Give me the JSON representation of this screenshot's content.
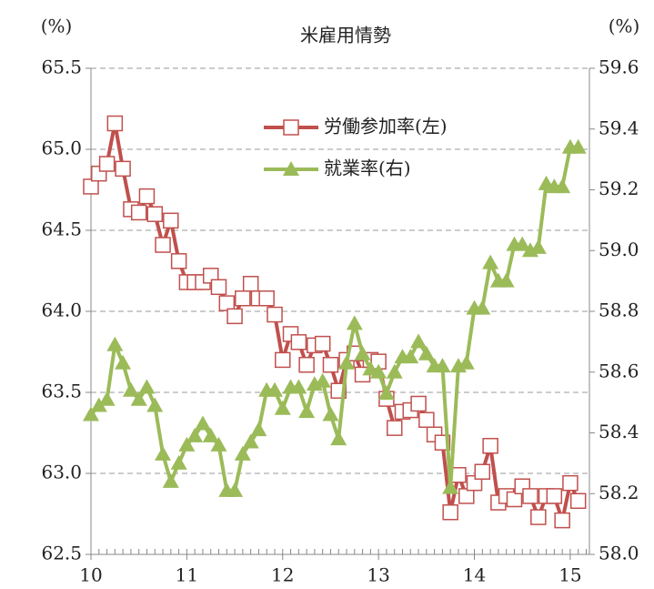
{
  "chart_data": {
    "type": "line",
    "title": "米雇用情勢",
    "y_unit": "(%)",
    "y2_unit": "(%)",
    "xlim": [
      10,
      15.2
    ],
    "xticks": [
      10,
      11,
      12,
      13,
      14,
      15
    ],
    "ylim": [
      62.5,
      65.5
    ],
    "yticks": [
      {
        "value": 62.5,
        "label": "62.5"
      },
      {
        "value": 63.0,
        "label": "63.0"
      },
      {
        "value": 63.5,
        "label": "63.5"
      },
      {
        "value": 64.0,
        "label": "64.0"
      },
      {
        "value": 64.5,
        "label": "64.5"
      },
      {
        "value": 65.0,
        "label": "65.0"
      },
      {
        "value": 65.5,
        "label": "65.5"
      }
    ],
    "y2lim": [
      58.0,
      59.6
    ],
    "y2ticks": [
      {
        "value": 58.0,
        "label": "58.0"
      },
      58.2,
      58.4,
      58.6,
      58.8,
      {
        "value": 59.0,
        "label": "59.0"
      },
      59.2,
      59.4,
      59.6
    ],
    "grid": true,
    "legend": "top",
    "x": [
      10,
      10.083,
      10.167,
      10.25,
      10.333,
      10.417,
      10.5,
      10.583,
      10.667,
      10.75,
      10.833,
      10.917,
      11,
      11.083,
      11.167,
      11.25,
      11.333,
      11.417,
      11.5,
      11.583,
      11.667,
      11.75,
      11.833,
      11.917,
      12,
      12.083,
      12.167,
      12.25,
      12.333,
      12.417,
      12.5,
      12.583,
      12.667,
      12.75,
      12.833,
      12.917,
      13,
      13.083,
      13.167,
      13.25,
      13.333,
      13.417,
      13.5,
      13.583,
      13.667,
      13.75,
      13.833,
      13.917,
      14,
      14.083,
      14.167,
      14.25,
      14.333,
      14.417,
      14.5,
      14.583,
      14.667,
      14.75,
      14.833,
      14.917,
      15,
      15.083
    ],
    "series": [
      {
        "name": "労働参加率(左)",
        "color": "#c0504d",
        "marker": "square",
        "values": [
          64.77,
          64.85,
          64.91,
          65.16,
          64.88,
          64.63,
          64.61,
          64.71,
          64.6,
          64.41,
          64.56,
          64.31,
          64.18,
          64.18,
          64.18,
          64.22,
          64.15,
          64.05,
          63.97,
          64.08,
          64.17,
          64.08,
          64.08,
          63.98,
          63.7,
          63.86,
          63.81,
          63.67,
          63.79,
          63.8,
          63.67,
          63.51,
          63.7,
          63.74,
          63.61,
          63.7,
          63.69,
          63.46,
          63.28,
          63.38,
          63.39,
          63.43,
          63.33,
          63.24,
          63.19,
          62.76,
          62.99,
          62.86,
          62.94,
          63.01,
          63.17,
          62.82,
          62.86,
          62.84,
          62.92,
          62.86,
          62.73,
          62.86,
          62.86,
          62.71,
          62.94,
          62.83
        ]
      },
      {
        "name": "就業率(右)",
        "color": "#9bbb59",
        "marker": "triangle",
        "axis": "y2",
        "values": [
          58.46,
          58.49,
          58.51,
          58.69,
          58.63,
          58.54,
          58.51,
          58.55,
          58.49,
          58.33,
          58.24,
          58.3,
          58.36,
          58.39,
          58.43,
          58.39,
          58.36,
          58.21,
          58.21,
          58.33,
          58.37,
          58.41,
          58.54,
          58.54,
          58.48,
          58.55,
          58.55,
          58.47,
          58.56,
          58.57,
          58.46,
          58.38,
          58.63,
          58.76,
          58.66,
          58.61,
          58.6,
          58.53,
          58.6,
          58.65,
          58.65,
          58.7,
          58.66,
          58.62,
          58.62,
          58.22,
          58.62,
          58.63,
          58.81,
          58.81,
          58.96,
          58.9,
          58.9,
          59.02,
          59.02,
          59.0,
          59.01,
          59.22,
          59.21,
          59.21,
          59.34,
          59.34
        ]
      }
    ]
  }
}
